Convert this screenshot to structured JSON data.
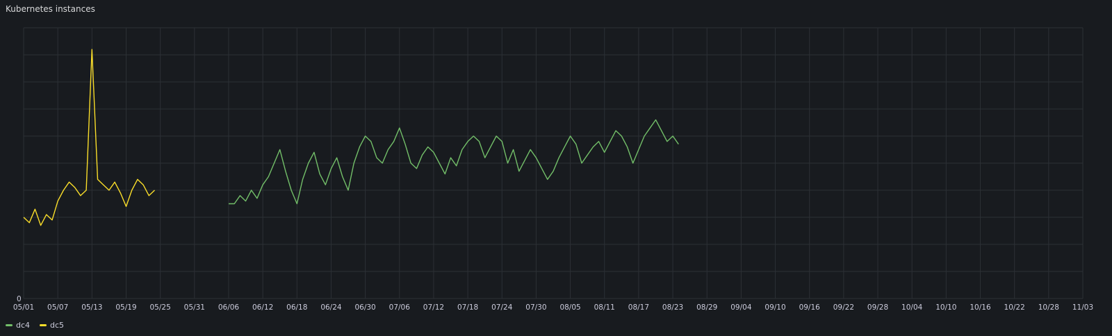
{
  "panel": {
    "title": "Kubernetes instances"
  },
  "chart_data": {
    "type": "line",
    "title": "Kubernetes instances",
    "xlabel": "",
    "ylabel": "",
    "y_ticks": [
      "0"
    ],
    "grid": true,
    "legend_position": "bottom-left",
    "x_ticks": [
      "05/01",
      "05/07",
      "05/13",
      "05/19",
      "05/25",
      "05/31",
      "06/06",
      "06/12",
      "06/18",
      "06/24",
      "06/30",
      "07/06",
      "07/12",
      "07/18",
      "07/24",
      "07/30",
      "08/05",
      "08/11",
      "08/17",
      "08/23",
      "08/29",
      "09/04",
      "09/10",
      "09/16",
      "09/22",
      "09/28",
      "10/04",
      "10/10",
      "10/16",
      "10/22",
      "10/28",
      "11/03"
    ],
    "xlim": [
      "05/01",
      "11/03"
    ],
    "ylim": [
      0,
      100
    ],
    "series": [
      {
        "name": "dc4",
        "color": "#73bf69",
        "points": [
          [
            "06/06",
            35
          ],
          [
            "06/07",
            35
          ],
          [
            "06/08",
            38
          ],
          [
            "06/09",
            36
          ],
          [
            "06/10",
            40
          ],
          [
            "06/11",
            37
          ],
          [
            "06/12",
            42
          ],
          [
            "06/13",
            45
          ],
          [
            "06/14",
            50
          ],
          [
            "06/15",
            55
          ],
          [
            "06/16",
            47
          ],
          [
            "06/17",
            40
          ],
          [
            "06/18",
            35
          ],
          [
            "06/19",
            44
          ],
          [
            "06/20",
            50
          ],
          [
            "06/21",
            54
          ],
          [
            "06/22",
            46
          ],
          [
            "06/23",
            42
          ],
          [
            "06/24",
            48
          ],
          [
            "06/25",
            52
          ],
          [
            "06/26",
            45
          ],
          [
            "06/27",
            40
          ],
          [
            "06/28",
            50
          ],
          [
            "06/29",
            56
          ],
          [
            "06/30",
            60
          ],
          [
            "07/01",
            58
          ],
          [
            "07/02",
            52
          ],
          [
            "07/03",
            50
          ],
          [
            "07/04",
            55
          ],
          [
            "07/05",
            58
          ],
          [
            "07/06",
            63
          ],
          [
            "07/07",
            57
          ],
          [
            "07/08",
            50
          ],
          [
            "07/09",
            48
          ],
          [
            "07/10",
            53
          ],
          [
            "07/11",
            56
          ],
          [
            "07/12",
            54
          ],
          [
            "07/13",
            50
          ],
          [
            "07/14",
            46
          ],
          [
            "07/15",
            52
          ],
          [
            "07/16",
            49
          ],
          [
            "07/17",
            55
          ],
          [
            "07/18",
            58
          ],
          [
            "07/19",
            60
          ],
          [
            "07/20",
            58
          ],
          [
            "07/21",
            52
          ],
          [
            "07/22",
            56
          ],
          [
            "07/23",
            60
          ],
          [
            "07/24",
            58
          ],
          [
            "07/25",
            50
          ],
          [
            "07/26",
            55
          ],
          [
            "07/27",
            47
          ],
          [
            "07/28",
            51
          ],
          [
            "07/29",
            55
          ],
          [
            "07/30",
            52
          ],
          [
            "07/31",
            48
          ],
          [
            "08/01",
            44
          ],
          [
            "08/02",
            47
          ],
          [
            "08/03",
            52
          ],
          [
            "08/04",
            56
          ],
          [
            "08/05",
            60
          ],
          [
            "08/06",
            57
          ],
          [
            "08/07",
            50
          ],
          [
            "08/08",
            53
          ],
          [
            "08/09",
            56
          ],
          [
            "08/10",
            58
          ],
          [
            "08/11",
            54
          ],
          [
            "08/12",
            58
          ],
          [
            "08/13",
            62
          ],
          [
            "08/14",
            60
          ],
          [
            "08/15",
            56
          ],
          [
            "08/16",
            50
          ],
          [
            "08/17",
            55
          ],
          [
            "08/18",
            60
          ],
          [
            "08/19",
            63
          ],
          [
            "08/20",
            66
          ],
          [
            "08/21",
            62
          ],
          [
            "08/22",
            58
          ],
          [
            "08/23",
            60
          ],
          [
            "08/24",
            57
          ]
        ]
      },
      {
        "name": "dc5",
        "color": "#fade2a",
        "points": [
          [
            "05/01",
            30
          ],
          [
            "05/02",
            28
          ],
          [
            "05/03",
            33
          ],
          [
            "05/04",
            27
          ],
          [
            "05/05",
            31
          ],
          [
            "05/06",
            29
          ],
          [
            "05/07",
            36
          ],
          [
            "05/08",
            40
          ],
          [
            "05/09",
            43
          ],
          [
            "05/10",
            41
          ],
          [
            "05/11",
            38
          ],
          [
            "05/12",
            40
          ],
          [
            "05/13",
            92
          ],
          [
            "05/14",
            44
          ],
          [
            "05/15",
            42
          ],
          [
            "05/16",
            40
          ],
          [
            "05/17",
            43
          ],
          [
            "05/18",
            39
          ],
          [
            "05/19",
            34
          ],
          [
            "05/20",
            40
          ],
          [
            "05/21",
            44
          ],
          [
            "05/22",
            42
          ],
          [
            "05/23",
            38
          ],
          [
            "05/24",
            40
          ]
        ]
      }
    ]
  }
}
